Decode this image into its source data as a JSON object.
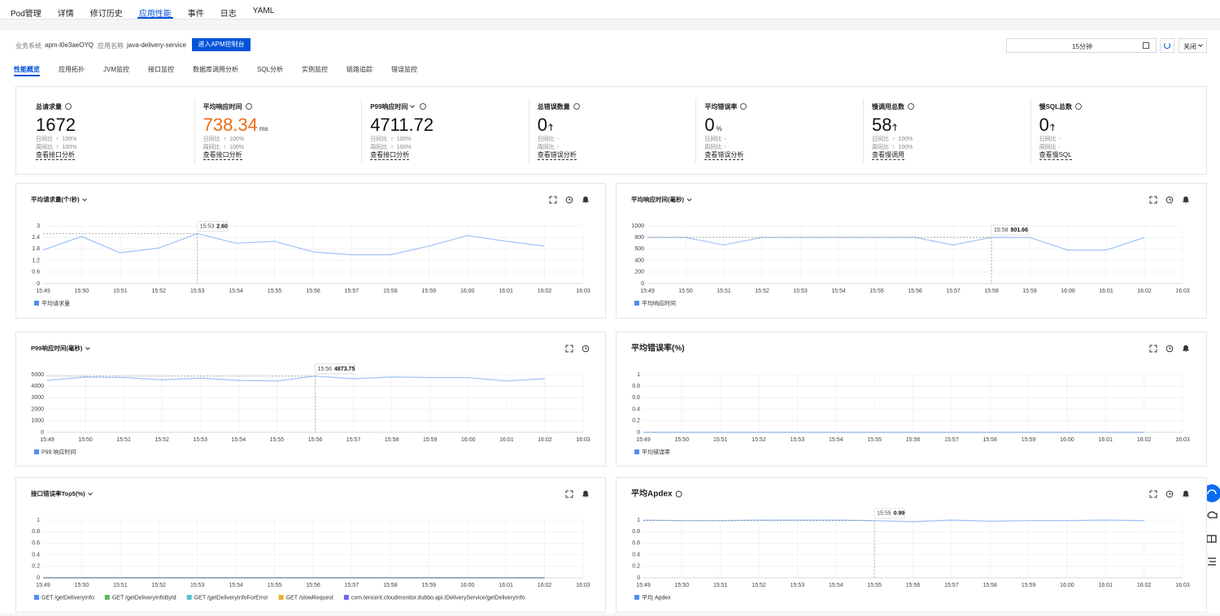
{
  "tabs": {
    "items": [
      "Pod管理",
      "详情",
      "修订历史",
      "应用性能",
      "事件",
      "日志",
      "YAML"
    ],
    "active": 3
  },
  "info": {
    "system_label": "业务系统",
    "system": "apm-l0e3aeOYQ",
    "app_label": "应用名称",
    "app": "java-delivery-service",
    "button": "进入APM控制台",
    "time_range": "15分钟",
    "close": "关闭"
  },
  "subtabs": {
    "items": [
      "性能概览",
      "应用拓扑",
      "JVM监控",
      "接口监控",
      "数据库调用分析",
      "SQL分析",
      "实例监控",
      "链路追踪",
      "错误监控"
    ],
    "active": 0
  },
  "metrics": [
    {
      "title": "总请求量",
      "value": 1672,
      "day_label": "日同比",
      "day": "100%",
      "week_label": "周同比",
      "week": "100%",
      "link": "查看接口分析"
    },
    {
      "title": "平均响应时间",
      "value": 738.34,
      "unit": "ms",
      "color": "#f06a17",
      "day_label": "日同比",
      "day": "100%",
      "week_label": "周同比",
      "week": "100%",
      "link": "查看接口分析"
    },
    {
      "title": "P99响应时间",
      "dropdown": true,
      "value": 4711.72,
      "day_label": "日同比",
      "day": "100%",
      "week_label": "周同比",
      "week": "100%",
      "link": "查看接口分析"
    },
    {
      "title": "总错误数量",
      "value": 0,
      "arrow": true,
      "day_label": "日同比",
      "day": "-",
      "week_label": "周同比",
      "week": "-",
      "link": "查看错误分析"
    },
    {
      "title": "平均错误率",
      "value": 0,
      "unit": "%",
      "day_label": "日同比",
      "day": "-",
      "week_label": "周同比",
      "week": "-",
      "link": "查看错误分析"
    },
    {
      "title": "慢调用总数",
      "value": 58,
      "arrow": true,
      "day_label": "日同比",
      "day": "100%",
      "week_label": "周同比",
      "week": "100%",
      "link": "查看慢调用"
    },
    {
      "title": "慢SQL总数",
      "value": 0,
      "arrow": true,
      "day_label": "日同比",
      "day": "-",
      "week_label": "周同比",
      "week": "-",
      "link": "查看慢SQL"
    }
  ],
  "chart_data": [
    {
      "type": "line",
      "title": "平均请求量(个/秒)",
      "dropdown": true,
      "icons": [
        "fullscreen",
        "clock",
        "bell"
      ],
      "grid": true,
      "categories": [
        "15:49",
        "15:50",
        "15:51",
        "15:52",
        "15:53",
        "15:54",
        "15:55",
        "15:56",
        "15:57",
        "15:58",
        "15:59",
        "16:00",
        "16:01",
        "16:02",
        "16:03"
      ],
      "series": [
        {
          "name": "平均请求量",
          "color": "#4e8ff0",
          "values": [
            1.75,
            2.45,
            1.6,
            1.85,
            2.6,
            2.1,
            2.2,
            1.65,
            1.5,
            1.5,
            1.95,
            2.5,
            2.2,
            1.95,
            null
          ],
          "value_labels": [
            null,
            null,
            null,
            null,
            "2.60",
            null,
            null,
            null,
            null,
            null,
            null,
            null,
            null,
            null,
            null
          ]
        }
      ],
      "ylim": [
        0,
        3
      ],
      "yticks": [
        0,
        0.6,
        1.2,
        1.8,
        2.4,
        3
      ]
    },
    {
      "type": "line",
      "title": "平均响应时间(毫秒)",
      "dropdown": true,
      "icons": [
        "fullscreen",
        "clock",
        "bell"
      ],
      "grid": true,
      "categories": [
        "15:49",
        "15:50",
        "15:51",
        "15:52",
        "15:53",
        "15:54",
        "15:55",
        "15:56",
        "15:57",
        "15:58",
        "15:59",
        "16:00",
        "16:01",
        "16:02",
        "16:03"
      ],
      "series": [
        {
          "name": "平均响应时间",
          "color": "#4e8ff0",
          "values": [
            800,
            800,
            670,
            800,
            800,
            800,
            800,
            800,
            670,
            801.66,
            800,
            580,
            580,
            800,
            null
          ],
          "value_labels": [
            null,
            null,
            null,
            null,
            null,
            null,
            null,
            null,
            null,
            "801.66",
            null,
            null,
            null,
            null,
            null
          ]
        }
      ],
      "ylim": [
        0,
        1000
      ],
      "yticks": [
        0,
        200,
        400,
        600,
        800,
        1000
      ]
    },
    {
      "type": "line",
      "title": "P99响应时间(毫秒)",
      "dropdown": true,
      "icons": [
        "fullscreen",
        "clock"
      ],
      "grid": true,
      "categories": [
        "15:49",
        "15:50",
        "15:51",
        "15:52",
        "15:53",
        "15:54",
        "15:55",
        "15:56",
        "15:57",
        "15:58",
        "15:59",
        "16:00",
        "16:01",
        "16:02",
        "16:03"
      ],
      "series": [
        {
          "name": "P99 响应时间",
          "color": "#4e8ff0",
          "values": [
            4500,
            4800,
            4750,
            4550,
            4700,
            4500,
            4450,
            4873.75,
            4650,
            4800,
            4750,
            4750,
            4450,
            4650,
            null
          ],
          "value_labels": [
            null,
            null,
            null,
            null,
            null,
            null,
            null,
            "4873.75",
            null,
            null,
            null,
            null,
            null,
            null,
            null
          ]
        }
      ],
      "ylim": [
        0,
        5000
      ],
      "yticks": [
        0,
        1000,
        2000,
        3000,
        4000,
        5000
      ]
    },
    {
      "type": "line",
      "title": "平均错误率(%)",
      "dropdown": false,
      "icons": [
        "fullscreen",
        "clock",
        "bell"
      ],
      "grid": true,
      "categories": [
        "15:49",
        "15:50",
        "15:51",
        "15:52",
        "15:53",
        "15:54",
        "15:55",
        "15:56",
        "15:57",
        "15:58",
        "15:59",
        "16:00",
        "16:01",
        "16:02",
        "16:03"
      ],
      "series": [
        {
          "name": "平均错误率",
          "color": "#4e8ff0",
          "values": [
            0,
            0,
            0,
            0,
            0,
            0,
            0,
            0,
            0,
            0,
            0,
            0,
            0,
            0,
            null
          ]
        }
      ],
      "ylim": [
        0,
        1
      ],
      "yticks": [
        0,
        0.2,
        0.4,
        0.6,
        0.8,
        1
      ]
    },
    {
      "type": "line",
      "title": "接口错误率Top5(%)",
      "dropdown": true,
      "icons": [
        "fullscreen",
        "bell"
      ],
      "grid": true,
      "categories": [
        "15:49",
        "15:50",
        "15:51",
        "15:52",
        "15:53",
        "15:54",
        "15:55",
        "15:56",
        "15:57",
        "15:58",
        "15:59",
        "16:00",
        "16:01",
        "16:02",
        "16:03"
      ],
      "series": [
        {
          "name": "GET /getDeliveryInfo",
          "color": "#4e8ff0",
          "values": [
            0,
            0,
            0,
            0,
            0,
            0,
            0,
            0,
            0,
            0,
            0,
            0,
            0,
            0,
            null
          ]
        },
        {
          "name": "GET /getDeliveryInfoById",
          "color": "#5cb860",
          "values": [
            0,
            0,
            0,
            0,
            0,
            0,
            0,
            0,
            0,
            0,
            0,
            0,
            0,
            0,
            null
          ]
        },
        {
          "name": "GET /getDeliveryInfoForError",
          "color": "#55c3d6",
          "values": [
            0,
            0,
            0,
            0,
            0,
            0,
            0,
            0,
            0,
            0,
            0,
            0,
            0,
            0,
            null
          ]
        },
        {
          "name": "GET /slowRequest",
          "color": "#e6b42e",
          "values": [
            0,
            0,
            0,
            0,
            0,
            0,
            0,
            0,
            0,
            0,
            0,
            0,
            0,
            0,
            null
          ]
        },
        {
          "name": "com.tencent.cloudmonitor.dubbo.api.IDeliveryService/getDeliveryInfo",
          "color": "#6a6be6",
          "values": [
            0,
            0,
            0,
            0,
            0,
            0,
            0,
            0,
            0,
            0,
            0,
            0,
            0,
            0,
            null
          ]
        }
      ],
      "ylim": [
        0,
        1
      ],
      "yticks": [
        0,
        0.2,
        0.4,
        0.6,
        0.8,
        1
      ]
    },
    {
      "type": "line",
      "title": "平均Apdex",
      "dropdown": false,
      "info_icon": true,
      "icons": [
        "fullscreen",
        "clock",
        "bell"
      ],
      "grid": true,
      "categories": [
        "15:49",
        "15:50",
        "15:51",
        "15:52",
        "15:53",
        "15:54",
        "15:55",
        "15:56",
        "15:57",
        "15:58",
        "15:59",
        "16:00",
        "16:01",
        "16:02",
        "16:03"
      ],
      "series": [
        {
          "name": "平均 Apdex",
          "color": "#4e8ff0",
          "values": [
            1,
            0.99,
            0.99,
            1,
            1,
            1,
            0.99,
            0.97,
            1,
            0.98,
            0.99,
            0.99,
            1,
            0.99,
            null
          ],
          "value_labels": [
            null,
            null,
            null,
            null,
            null,
            null,
            "0.99",
            null,
            null,
            null,
            null,
            null,
            null,
            null,
            null
          ]
        }
      ],
      "ylim": [
        0,
        1
      ],
      "yticks": [
        0,
        0.2,
        0.4,
        0.6,
        0.8,
        1
      ]
    }
  ]
}
